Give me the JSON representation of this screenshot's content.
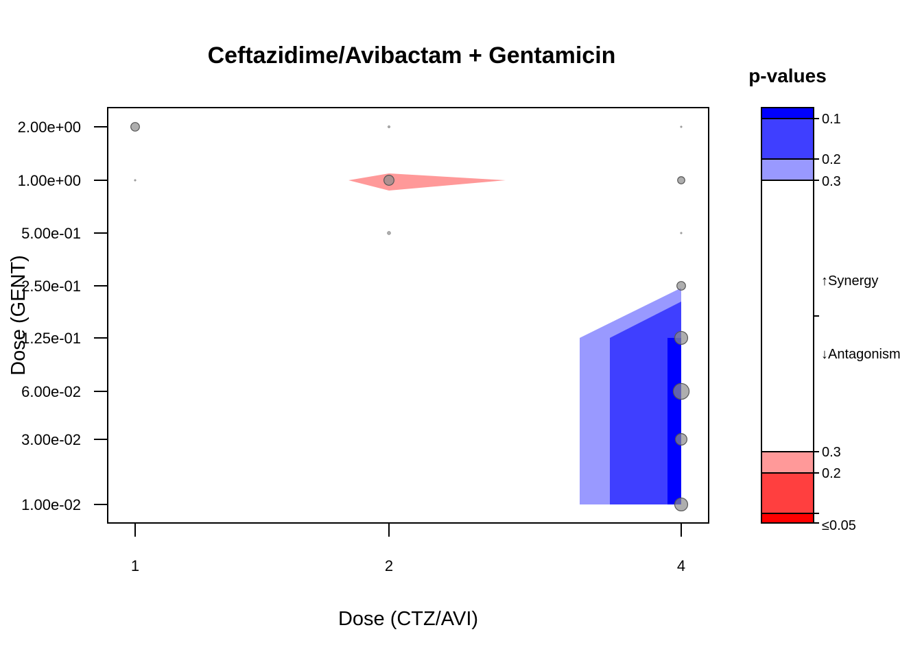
{
  "chart_data": {
    "type": "scatter",
    "title": "Ceftazidime/Avibactam + Gentamicin",
    "xlabel": "Dose (CTZ/AVI)",
    "ylabel": "Dose (GENT)",
    "x_ticks": [
      "1",
      "2",
      "4"
    ],
    "y_ticks": [
      "1.00e-02",
      "3.00e-02",
      "6.00e-02",
      "1.25e-01",
      "2.50e-01",
      "5.00e-01",
      "1.00e+00",
      "2.00e+00"
    ],
    "points": [
      {
        "x": "1",
        "y": "2.00e+00",
        "size": 3
      },
      {
        "x": "1",
        "y": "1.00e+00",
        "size": 0.6
      },
      {
        "x": "2",
        "y": "2.00e+00",
        "size": 0.8
      },
      {
        "x": "2",
        "y": "1.00e+00",
        "size": 3.5
      },
      {
        "x": "2",
        "y": "5.00e-01",
        "size": 1.2
      },
      {
        "x": "4",
        "y": "2.00e+00",
        "size": 0.6
      },
      {
        "x": "4",
        "y": "1.00e+00",
        "size": 2.5
      },
      {
        "x": "4",
        "y": "5.00e-01",
        "size": 0.6
      },
      {
        "x": "4",
        "y": "2.50e-01",
        "size": 3
      },
      {
        "x": "4",
        "y": "1.25e-01",
        "size": 4.5
      },
      {
        "x": "4",
        "y": "6.00e-02",
        "size": 5.5
      },
      {
        "x": "4",
        "y": "3.00e-02",
        "size": 4
      },
      {
        "x": "4",
        "y": "1.00e-02",
        "size": 4.5
      }
    ],
    "regions": [
      {
        "kind": "antagonism",
        "p_band": "0.2-0.3",
        "color": "#ff9999"
      },
      {
        "kind": "synergy",
        "p_band": "0.2-0.3",
        "color": "#9999ff"
      },
      {
        "kind": "synergy",
        "p_band": "0.1-0.2",
        "color": "#3f3fff"
      },
      {
        "kind": "synergy",
        "p_band": "<0.1",
        "color": "#0000ff"
      }
    ],
    "legend": {
      "title": "p-values",
      "labels": {
        "syn_01": "0.1",
        "syn_02": "0.2",
        "syn_03": "0.3",
        "synergy": "↑Synergy",
        "antagonism": "↓Antagonism",
        "ant_03": "0.3",
        "ant_02": "0.2",
        "ant_005": "≤0.05"
      },
      "colors": {
        "syn_strong": "#0000ff",
        "syn_mid": "#3f3fff",
        "syn_light": "#9999ff",
        "neutral": "#ffffff",
        "ant_light": "#ff9999",
        "ant_mid": "#ff3f3f",
        "ant_strong": "#ff0000"
      }
    },
    "point_color": "#8c8c8c",
    "grid": false
  }
}
